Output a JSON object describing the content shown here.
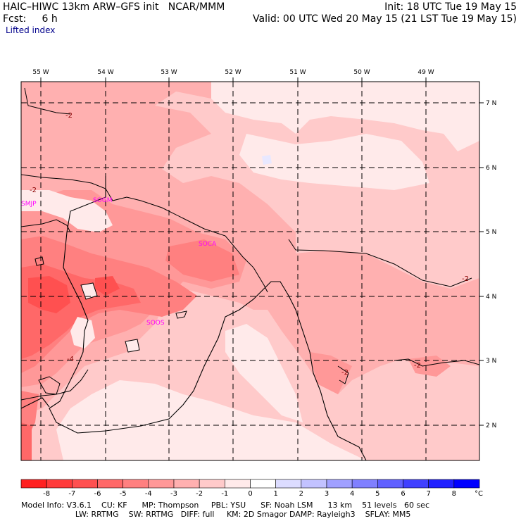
{
  "header": {
    "model": "HAIC–HIWC 13km ARW–GFS init   NCAR/MMM",
    "fcst": "Fcst:     6 h",
    "init": "Init: 18 UTC Tue 19 May 15",
    "valid": "Valid: 00 UTC Wed 20 May 15 (21 LST Tue 19 May 15)",
    "field": "Lifted index"
  },
  "map": {
    "lon_labels": [
      "55 W",
      "54 W",
      "53 W",
      "52 W",
      "51 W",
      "50 W",
      "49 W"
    ],
    "lat_labels": [
      "7 N",
      "6 N",
      "5 N",
      "4 N",
      "3 N",
      "2 N"
    ],
    "stations": [
      "SMJP",
      "SOGM",
      "SOCA",
      "SOOS"
    ],
    "contour_labels": [
      "-2",
      "-2",
      "-2",
      "-2",
      "-2",
      "-4"
    ]
  },
  "colorbar": {
    "ticks": [
      "-8",
      "-7",
      "-6",
      "-5",
      "-4",
      "-3",
      "-2",
      "-1",
      "0",
      "1",
      "2",
      "3",
      "4",
      "5",
      "6",
      "7",
      "8"
    ],
    "unit": "°C",
    "colors": [
      "#ff2020",
      "#ff3a3a",
      "#ff5050",
      "#ff6868",
      "#ff8080",
      "#ff9898",
      "#ffb0b0",
      "#ffcaca",
      "#ffeaea",
      "#ffffff",
      "#dcdcff",
      "#c2c2ff",
      "#a0a0ff",
      "#8080ff",
      "#6060ff",
      "#4040ff",
      "#2020ff",
      "#0000ff"
    ]
  },
  "footer": {
    "line1": "Model Info: V3.6.1    CU: KF      MP: Thompson     PBL: YSU      SF: Noah LSM      13 km    51 levels   60 sec",
    "line2": "                      LW: RRTMG    SW: RRTMG   DIFF: full     KM: 2D Smagor DAMP: Rayleigh3    SFLAY: MM5"
  }
}
